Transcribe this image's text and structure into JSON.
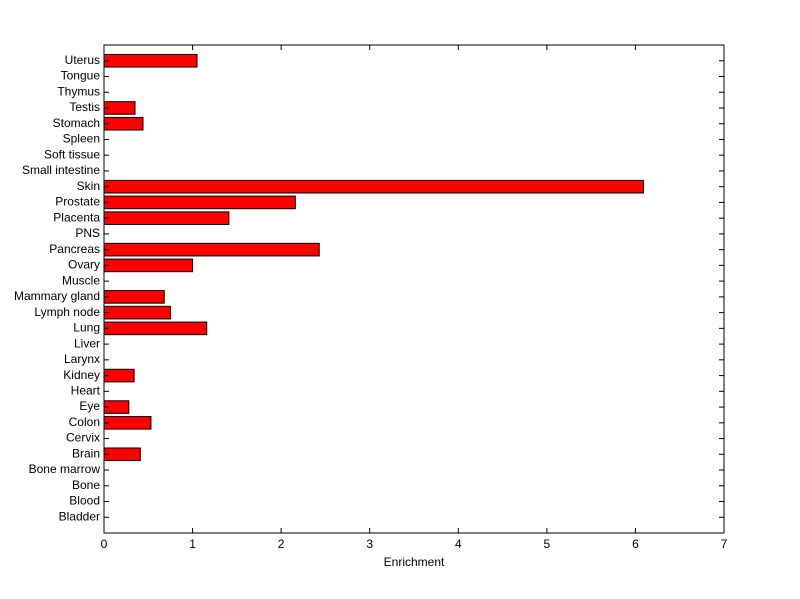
{
  "chart_data": {
    "type": "barh",
    "categories": [
      "Bladder",
      "Blood",
      "Bone",
      "Bone marrow",
      "Brain",
      "Cervix",
      "Colon",
      "Eye",
      "Heart",
      "Kidney",
      "Larynx",
      "Liver",
      "Lung",
      "Lymph node",
      "Mammary gland",
      "Muscle",
      "Ovary",
      "Pancreas",
      "PNS",
      "Placenta",
      "Prostate",
      "Skin",
      "Small intestine",
      "Soft tissue",
      "Spleen",
      "Stomach",
      "Testis",
      "Thymus",
      "Tongue",
      "Uterus"
    ],
    "values": [
      0,
      0,
      0,
      0,
      0.41,
      0,
      0.53,
      0.28,
      0,
      0.34,
      0,
      0,
      1.16,
      0.75,
      0.68,
      0,
      1.0,
      2.43,
      0,
      1.41,
      2.16,
      6.09,
      0,
      0,
      0,
      0.44,
      0.35,
      0,
      0,
      1.05
    ],
    "color": "#ff0000",
    "xlabel": "Enrichment",
    "xlim": [
      0,
      7
    ],
    "xticks": [
      0,
      1,
      2,
      3,
      4,
      5,
      6,
      7
    ]
  }
}
